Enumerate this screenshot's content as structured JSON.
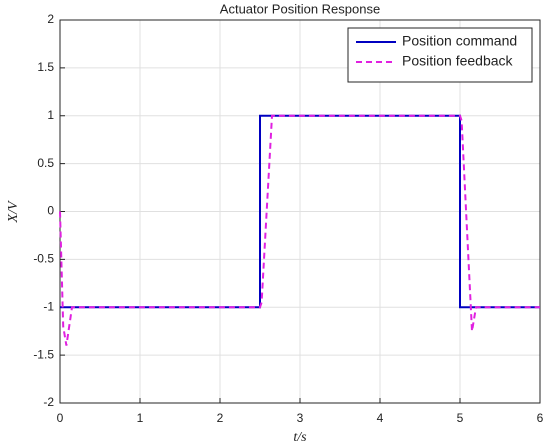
{
  "chart_data": {
    "type": "line",
    "title": "Actuator Position Response",
    "xlabel": "t/s",
    "ylabel": "X/V",
    "xlim": [
      0,
      6
    ],
    "xticks": [
      0,
      1,
      2,
      3,
      4,
      5,
      6
    ],
    "ylim": [
      -2,
      2
    ],
    "yticks": [
      -2,
      -1.5,
      -1,
      -0.5,
      0,
      0.5,
      1,
      1.5,
      2
    ],
    "grid": true,
    "legend": "upper right",
    "series": [
      {
        "name": "Position command",
        "color": "#0000c0",
        "style": "solid",
        "x": [
          0,
          2.5,
          2.5,
          5,
          5,
          6
        ],
        "values": [
          -1,
          -1,
          1,
          1,
          -1,
          -1
        ]
      },
      {
        "name": "Position feedback",
        "color": "#e020e0",
        "style": "dashed",
        "x": [
          0,
          0.04,
          0.08,
          0.15,
          2.5,
          2.52,
          2.65,
          5.0,
          5.02,
          5.15,
          5.2,
          6
        ],
        "values": [
          0,
          -1.2,
          -1.4,
          -1,
          -1,
          -0.95,
          1,
          1,
          0.95,
          -1.25,
          -1,
          -1
        ]
      }
    ]
  }
}
